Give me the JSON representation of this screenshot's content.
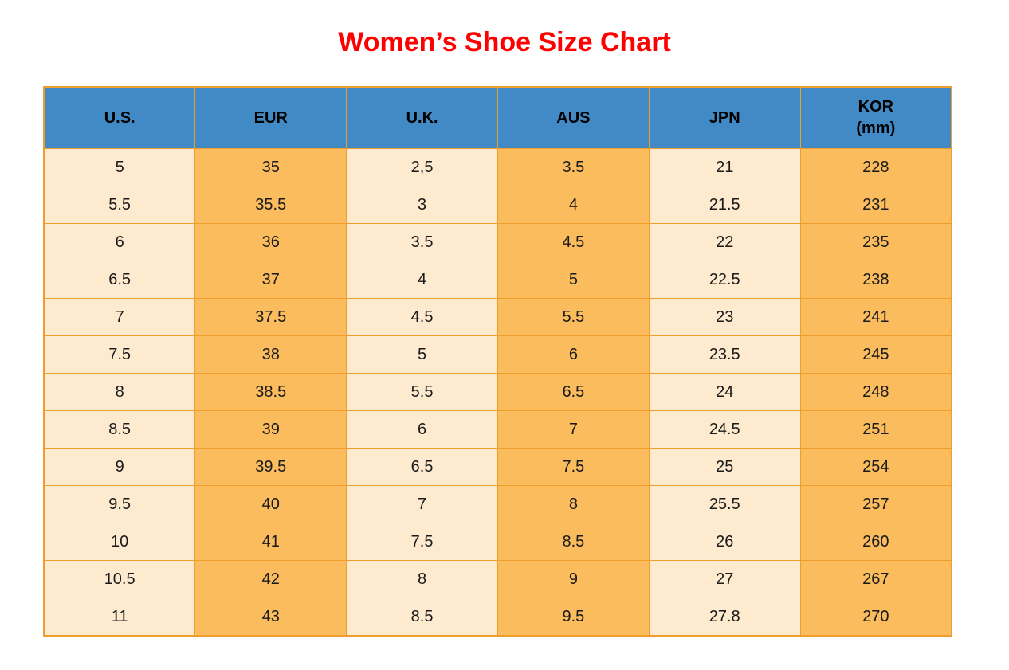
{
  "title": {
    "text": "Women’s Shoe Size Chart"
  },
  "colors": {
    "title_color": "#ff0000",
    "header_bg": "#428ac6",
    "header_text": "#000000",
    "cell_light": "#fdeacf",
    "cell_orange": "#fbbc5e",
    "border_color": "#ef9e2e",
    "cell_text": "#1a1a1a",
    "page_bg": "#ffffff"
  },
  "chart_data": {
    "type": "table",
    "title": "Women’s Shoe Size Chart",
    "columns": [
      {
        "label": "U.S."
      },
      {
        "label": "EUR"
      },
      {
        "label": "U.K."
      },
      {
        "label": "AUS"
      },
      {
        "label": "JPN"
      },
      {
        "label": "KOR",
        "sublabel": "(mm)"
      }
    ],
    "rows": [
      [
        "5",
        "35",
        "2,5",
        "3.5",
        "21",
        "228"
      ],
      [
        "5.5",
        "35.5",
        "3",
        "4",
        "21.5",
        "231"
      ],
      [
        "6",
        "36",
        "3.5",
        "4.5",
        "22",
        "235"
      ],
      [
        "6.5",
        "37",
        "4",
        "5",
        "22.5",
        "238"
      ],
      [
        "7",
        "37.5",
        "4.5",
        "5.5",
        "23",
        "241"
      ],
      [
        "7.5",
        "38",
        "5",
        "6",
        "23.5",
        "245"
      ],
      [
        "8",
        "38.5",
        "5.5",
        "6.5",
        "24",
        "248"
      ],
      [
        "8.5",
        "39",
        "6",
        "7",
        "24.5",
        "251"
      ],
      [
        "9",
        "39.5",
        "6.5",
        "7.5",
        "25",
        "254"
      ],
      [
        "9.5",
        "40",
        "7",
        "8",
        "25.5",
        "257"
      ],
      [
        "10",
        "41",
        "7.5",
        "8.5",
        "26",
        "260"
      ],
      [
        "10.5",
        "42",
        "8",
        "9",
        "27",
        "267"
      ],
      [
        "11",
        "43",
        "8.5",
        "9.5",
        "27.8",
        "270"
      ]
    ],
    "layout": {
      "column_fill_pattern": [
        "light",
        "orange",
        "light",
        "orange",
        "light",
        "orange"
      ],
      "grid": true,
      "header_style": "blue-band"
    }
  }
}
